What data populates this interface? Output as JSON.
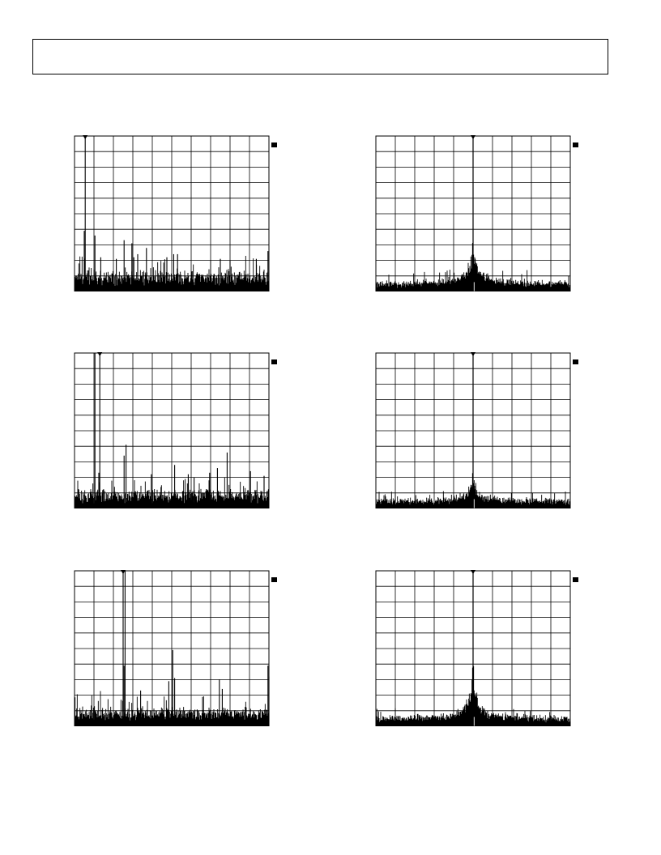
{
  "page": {
    "header_text": ""
  },
  "chart_data": [
    {
      "id": "plot-1",
      "type": "spectrum",
      "style": "comb",
      "xlim": [
        0,
        10
      ],
      "ylim": [
        0,
        10
      ],
      "grid": {
        "divisions_x": 10,
        "divisions_y": 10
      },
      "marker_x": 0.55,
      "peaks": [
        {
          "x": 0.55,
          "y": 10
        },
        {
          "x": 0.5,
          "y": 3.9
        },
        {
          "x": 1.05,
          "y": 3.6
        },
        {
          "x": 1.35,
          "y": 2.2
        },
        {
          "x": 2.15,
          "y": 2.1
        },
        {
          "x": 2.55,
          "y": 3.3
        },
        {
          "x": 2.95,
          "y": 3.1
        },
        {
          "x": 3.05,
          "y": 2.2
        },
        {
          "x": 3.25,
          "y": 2.4
        },
        {
          "x": 3.7,
          "y": 2.8
        },
        {
          "x": 4.75,
          "y": 2.2
        },
        {
          "x": 5.1,
          "y": 2.4
        },
        {
          "x": 5.3,
          "y": 2.4
        },
        {
          "x": 7.5,
          "y": 2.1
        },
        {
          "x": 8.0,
          "y": 2.0
        },
        {
          "x": 9.35,
          "y": 2.1
        },
        {
          "x": 9.95,
          "y": 2.6
        }
      ],
      "noise_floor": 0.7,
      "noise_variation": 0.8,
      "box_label": ""
    },
    {
      "id": "plot-2",
      "type": "spectrum",
      "style": "carrier",
      "xlim": [
        0,
        10
      ],
      "ylim": [
        0,
        10
      ],
      "grid": {
        "divisions_x": 10,
        "divisions_y": 10
      },
      "marker_x": 5.0,
      "center": 5.0,
      "peak": 10,
      "skirt": 3.2,
      "noise_floor": 0.3,
      "noise_variation": 0.5,
      "box_label": ""
    },
    {
      "id": "plot-3",
      "type": "spectrum",
      "style": "comb",
      "xlim": [
        0,
        10
      ],
      "ylim": [
        0,
        10
      ],
      "grid": {
        "divisions_x": 10,
        "divisions_y": 10
      },
      "marker_x": 1.3,
      "peaks": [
        {
          "x": 1.3,
          "y": 10
        },
        {
          "x": 1.05,
          "y": 10
        },
        {
          "x": 1.25,
          "y": 2.3
        },
        {
          "x": 2.55,
          "y": 3.4
        },
        {
          "x": 2.65,
          "y": 4.1
        },
        {
          "x": 3.95,
          "y": 2.2
        },
        {
          "x": 5.15,
          "y": 2.8
        },
        {
          "x": 5.85,
          "y": 2.2
        },
        {
          "x": 6.15,
          "y": 2.0
        },
        {
          "x": 6.95,
          "y": 2.3
        },
        {
          "x": 7.35,
          "y": 2.6
        },
        {
          "x": 7.85,
          "y": 3.6
        },
        {
          "x": 9.05,
          "y": 2.4
        },
        {
          "x": 9.75,
          "y": 2.1
        }
      ],
      "noise_floor": 0.6,
      "noise_variation": 0.8,
      "box_label": ""
    },
    {
      "id": "plot-4",
      "type": "spectrum",
      "style": "carrier",
      "xlim": [
        0,
        10
      ],
      "ylim": [
        0,
        10
      ],
      "grid": {
        "divisions_x": 10,
        "divisions_y": 10
      },
      "marker_x": 5.0,
      "center": 5.0,
      "peak": 10,
      "skirt": 2.2,
      "noise_floor": 0.3,
      "noise_variation": 0.4,
      "box_label": ""
    },
    {
      "id": "plot-5",
      "type": "spectrum",
      "style": "comb",
      "xlim": [
        0,
        10
      ],
      "ylim": [
        0,
        10
      ],
      "grid": {
        "divisions_x": 10,
        "divisions_y": 10
      },
      "marker_x": 2.5,
      "peaks": [
        {
          "x": 2.5,
          "y": 10
        },
        {
          "x": 2.6,
          "y": 10
        },
        {
          "x": 2.55,
          "y": 3.9
        },
        {
          "x": 3.4,
          "y": 2.3
        },
        {
          "x": 4.85,
          "y": 2.9
        },
        {
          "x": 5.05,
          "y": 4.9
        },
        {
          "x": 5.15,
          "y": 3.1
        },
        {
          "x": 7.45,
          "y": 3.0
        },
        {
          "x": 7.6,
          "y": 2.4
        },
        {
          "x": 9.95,
          "y": 3.9
        },
        {
          "x": 10.0,
          "y": 3.2
        }
      ],
      "noise_floor": 0.6,
      "noise_variation": 0.8,
      "box_label": ""
    },
    {
      "id": "plot-6",
      "type": "spectrum",
      "style": "carrier",
      "xlim": [
        0,
        10
      ],
      "ylim": [
        0,
        10
      ],
      "grid": {
        "divisions_x": 10,
        "divisions_y": 10
      },
      "marker_x": 5.0,
      "center": 5.0,
      "peak": 10,
      "skirt": 3.8,
      "noise_floor": 0.3,
      "noise_variation": 0.4,
      "box_label": ""
    }
  ]
}
